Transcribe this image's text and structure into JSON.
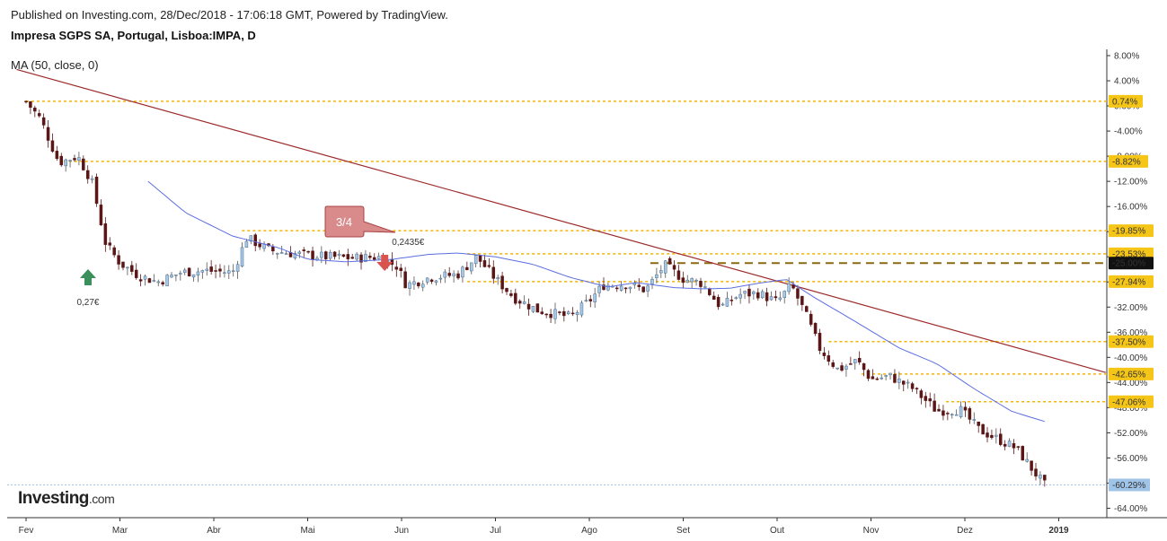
{
  "header": {
    "published": "Published on Investing.com, 28/Dec/2018 - 17:06:18 GMT, Powered by TradingView.",
    "instrument": "Impresa SGPS SA, Portugal, Lisboa:IMPA, D"
  },
  "logo": {
    "name": "Investing",
    "suffix": ".com"
  },
  "colors": {
    "up_candle": "#a8c8e8",
    "down_candle": "#5a1616",
    "ma_line": "#5b6ee0",
    "trend_line": "#9c2a2a",
    "level_line": "#f5b400",
    "level_label_bg": "#f5c518",
    "dashed_level": "#8a6a10",
    "current_price": "#a0c4e8",
    "buy_arrow": "#3a8f5a",
    "sell_arrow": "#d9534f",
    "callout_bg": "#d98a8a"
  },
  "chart_data": {
    "type": "candlestick",
    "indicator_label": "MA (50, close, 0)",
    "y_unit": "% change",
    "y_ticks": [
      "8.00%",
      "4.00%",
      "0.00%",
      "-4.00%",
      "-8.00%",
      "-12.00%",
      "-16.00%",
      "-20.00%",
      "-24.00%",
      "-28.00%",
      "-32.00%",
      "-36.00%",
      "-40.00%",
      "-44.00%",
      "-48.00%",
      "-52.00%",
      "-56.00%",
      "-60.00%",
      "-64.00%"
    ],
    "y_range": [
      -65.5,
      9
    ],
    "x_ticks": [
      "Fev",
      "Mar",
      "Abr",
      "Mai",
      "Jun",
      "Jul",
      "Ago",
      "Set",
      "Out",
      "Nov",
      "Dez",
      "2019"
    ],
    "levels": [
      {
        "value": 0.74,
        "label": "0.74%",
        "style": "dotted",
        "from_month": 0
      },
      {
        "value": -8.82,
        "label": "-8.82%",
        "style": "dotted",
        "from_month": 0.4
      },
      {
        "value": -19.85,
        "label": "-19.85%",
        "style": "dotted",
        "from_month": 2.3
      },
      {
        "value": -23.53,
        "label": "-23.53%",
        "style": "dotted",
        "from_month": 4.7
      },
      {
        "value": -25.0,
        "label": "-25.00%",
        "style": "dashed",
        "from_month": 6.65
      },
      {
        "value": -27.94,
        "label": "-27.94%",
        "style": "dotted",
        "from_month": 4.7
      },
      {
        "value": -37.5,
        "label": "-37.50%",
        "style": "dotted",
        "from_month": 8.55
      },
      {
        "value": -42.65,
        "label": "-42.65%",
        "style": "dotted",
        "from_month": 8.9
      },
      {
        "value": -47.06,
        "label": "-47.06%",
        "style": "dotted",
        "from_month": 9.8
      }
    ],
    "current": {
      "value": -60.29,
      "label": "-60.29%"
    },
    "trendline": {
      "start": [
        -0.1,
        5.8
      ],
      "end": [
        11.5,
        -42.4
      ]
    },
    "annotations": {
      "buy_price": "0,27€",
      "sell_price": "0,2435€",
      "callout": "3/4"
    },
    "ma_anchors": [
      [
        1.3,
        -12
      ],
      [
        1.7,
        -17
      ],
      [
        2.2,
        -20.7
      ],
      [
        2.7,
        -22.6
      ],
      [
        3.0,
        -24.4
      ],
      [
        3.4,
        -24.8
      ],
      [
        3.9,
        -24.4
      ],
      [
        4.3,
        -23.6
      ],
      [
        4.6,
        -23.4
      ],
      [
        5.0,
        -24.0
      ],
      [
        5.4,
        -25.2
      ],
      [
        5.8,
        -27.3
      ],
      [
        6.2,
        -28.8
      ],
      [
        6.5,
        -28.1
      ],
      [
        6.9,
        -28.9
      ],
      [
        7.2,
        -29.1
      ],
      [
        7.5,
        -29.0
      ],
      [
        7.8,
        -28.2
      ],
      [
        8.1,
        -27.6
      ],
      [
        8.4,
        -30.5
      ],
      [
        8.8,
        -34.0
      ],
      [
        9.3,
        -38.5
      ],
      [
        9.7,
        -41.0
      ],
      [
        10.1,
        -45.0
      ],
      [
        10.5,
        -48.6
      ],
      [
        10.85,
        -50.2
      ]
    ],
    "price_anchors": [
      [
        0,
        0.7
      ],
      [
        0.15,
        -2
      ],
      [
        0.35,
        -9
      ],
      [
        0.55,
        -8
      ],
      [
        0.7,
        -12
      ],
      [
        0.85,
        -22
      ],
      [
        1.0,
        -25
      ],
      [
        1.2,
        -27
      ],
      [
        1.4,
        -28
      ],
      [
        1.65,
        -26.5
      ],
      [
        1.9,
        -26.2
      ],
      [
        2.2,
        -26.5
      ],
      [
        2.35,
        -21
      ],
      [
        2.6,
        -23
      ],
      [
        2.9,
        -23.6
      ],
      [
        3.2,
        -24.0
      ],
      [
        3.5,
        -24.2
      ],
      [
        3.75,
        -24.0
      ],
      [
        3.95,
        -25.5
      ],
      [
        4.05,
        -28.5
      ],
      [
        4.3,
        -27.3
      ],
      [
        4.6,
        -26.8
      ],
      [
        4.8,
        -24.0
      ],
      [
        5.0,
        -27.5
      ],
      [
        5.2,
        -30.5
      ],
      [
        5.45,
        -32.5
      ],
      [
        5.8,
        -33.6
      ],
      [
        6.0,
        -31.0
      ],
      [
        6.15,
        -28.5
      ],
      [
        6.4,
        -28.4
      ],
      [
        6.6,
        -29.3
      ],
      [
        6.8,
        -25.3
      ],
      [
        7.0,
        -27.5
      ],
      [
        7.2,
        -28.2
      ],
      [
        7.4,
        -32.0
      ],
      [
        7.6,
        -30.0
      ],
      [
        7.8,
        -29.8
      ],
      [
        8.0,
        -31.2
      ],
      [
        8.15,
        -28.5
      ],
      [
        8.3,
        -33.0
      ],
      [
        8.45,
        -38.5
      ],
      [
        8.65,
        -42.0
      ],
      [
        8.85,
        -40.5
      ],
      [
        9.0,
        -43.5
      ],
      [
        9.2,
        -43.0
      ],
      [
        9.45,
        -45.0
      ],
      [
        9.7,
        -48.5
      ],
      [
        9.95,
        -48.3
      ],
      [
        10.15,
        -51.5
      ],
      [
        10.35,
        -53.0
      ],
      [
        10.55,
        -54.5
      ],
      [
        10.7,
        -57.5
      ],
      [
        10.85,
        -60.3
      ]
    ]
  }
}
